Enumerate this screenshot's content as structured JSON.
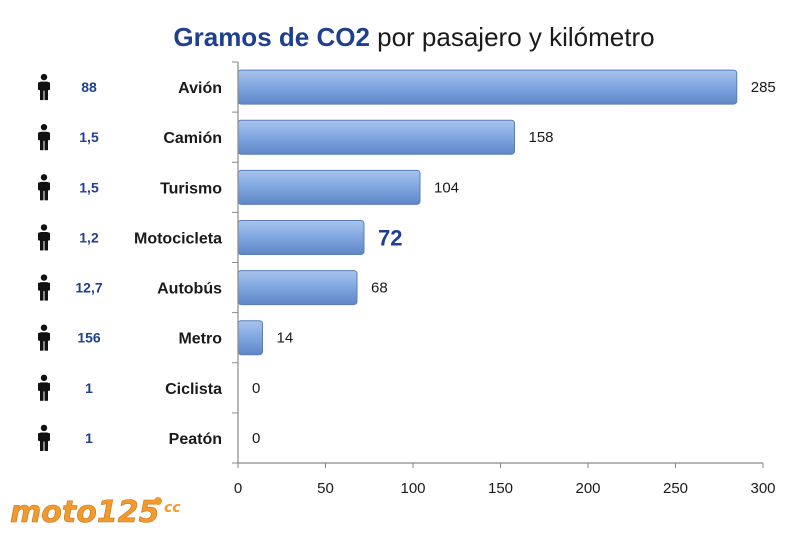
{
  "title_bold": "Gramos de CO2",
  "title_rest": " por pasajero y kilómetro",
  "logo": {
    "text": "moto125",
    "suffix": "cc"
  },
  "colors": {
    "bar_fill": "#7fa6e0",
    "bar_stroke": "#5a7fb8",
    "title_accent": "#1f3f8f",
    "logo_orange": "#f29a2e",
    "icon": "#111111"
  },
  "row_icon": "person-icon",
  "chart_data": {
    "type": "bar",
    "orientation": "horizontal",
    "categories": [
      "Avión",
      "Camión",
      "Turismo",
      "Motocicleta",
      "Autobús",
      "Metro",
      "Ciclista",
      "Peatón"
    ],
    "values": [
      285,
      158,
      104,
      72,
      68,
      14,
      0,
      0
    ],
    "value_labels": [
      "285",
      "158",
      "104",
      "72",
      "68",
      "14",
      "0",
      "0"
    ],
    "highlight_category": "Motocicleta",
    "passengers": [
      "88",
      "1,5",
      "1,5",
      "1,2",
      "12,7",
      "156",
      "1",
      "1"
    ],
    "xlim": [
      0,
      300
    ],
    "xticks": [
      0,
      50,
      100,
      150,
      200,
      250,
      300
    ],
    "grid": false,
    "legend": "none"
  }
}
